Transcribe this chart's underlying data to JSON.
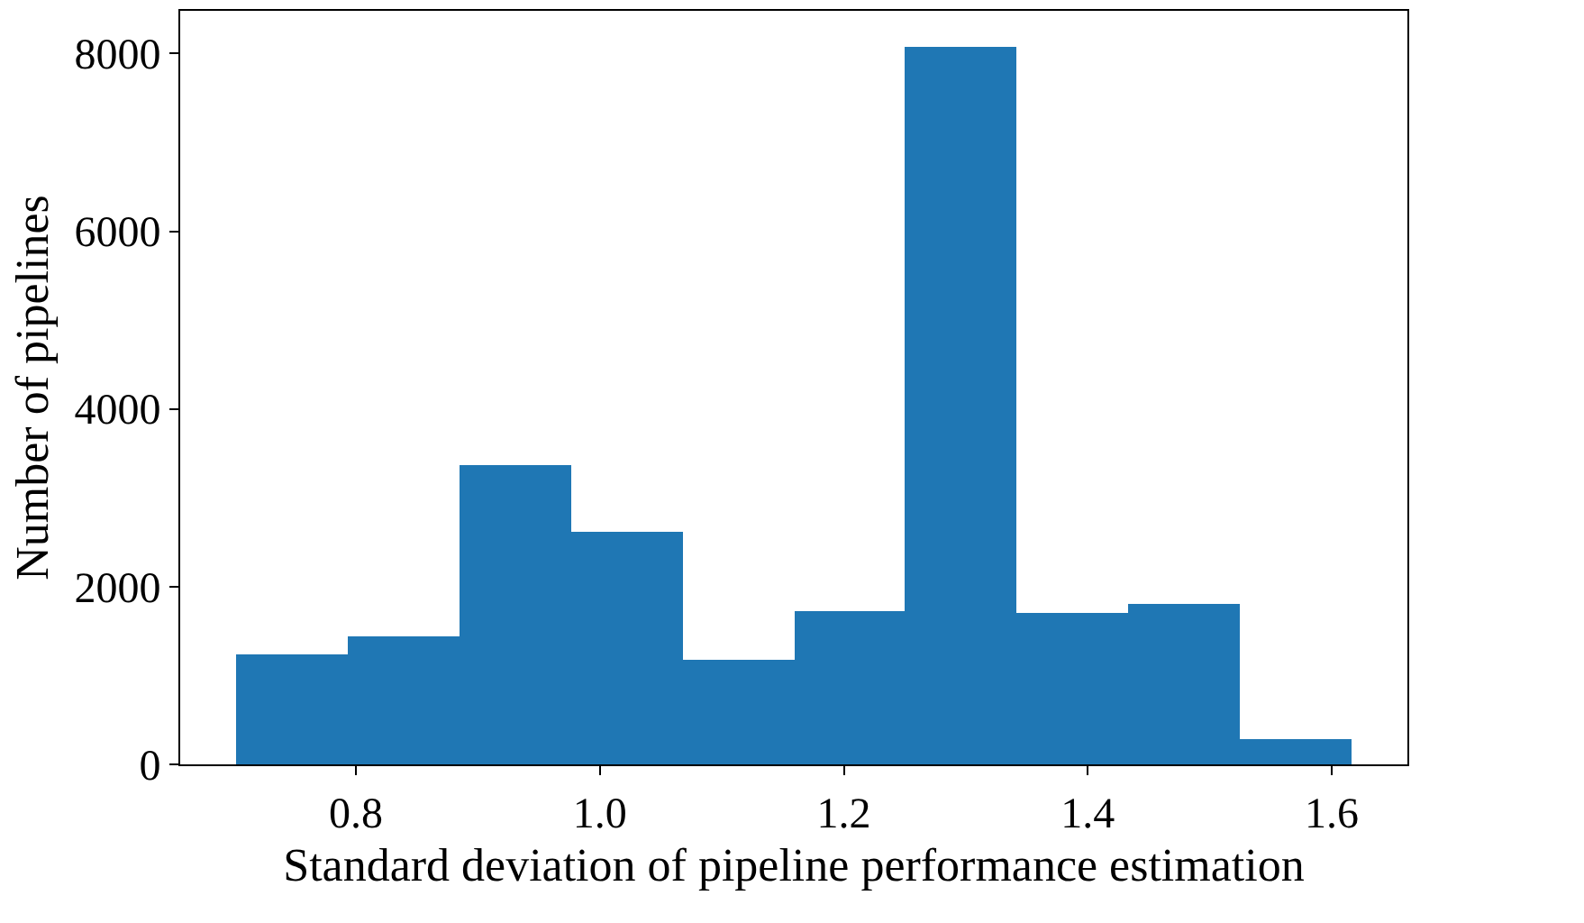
{
  "chart_data": {
    "type": "histogram",
    "xlabel": "Standard deviation of pipeline performance estimation",
    "ylabel": "Number of pipelines",
    "bins": [
      0.702,
      0.793,
      0.885,
      0.976,
      1.068,
      1.159,
      1.25,
      1.342,
      1.433,
      1.525,
      1.616
    ],
    "values": [
      1230,
      1440,
      3360,
      2620,
      1180,
      1730,
      8070,
      1710,
      1810,
      290
    ],
    "color": "#1f77b4",
    "xlim": [
      0.656,
      1.662
    ],
    "ylim": [
      0,
      8480
    ],
    "xticks": [
      {
        "value": 0.8,
        "label": "0.8"
      },
      {
        "value": 1.0,
        "label": "1.0"
      },
      {
        "value": 1.2,
        "label": "1.2"
      },
      {
        "value": 1.4,
        "label": "1.4"
      },
      {
        "value": 1.6,
        "label": "1.6"
      }
    ],
    "yticks": [
      0,
      2000,
      4000,
      6000,
      8000
    ]
  }
}
